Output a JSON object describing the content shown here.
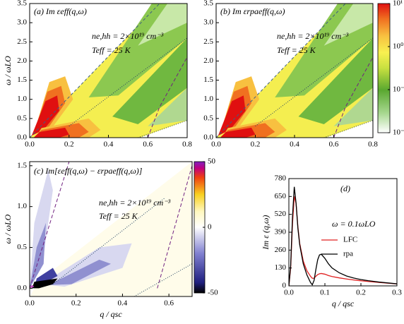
{
  "chart_data": [
    {
      "type": "contour",
      "annotations": [
        "(a) Im εeff(q,ω)",
        "ne,hh = 2×10¹⁹ cm⁻³",
        "Teff = 25 K"
      ],
      "y_label": "ω / ωLO",
      "xlim": [
        0,
        0.8
      ],
      "xticks": [
        {
          "value": 0,
          "label": "0.0"
        },
        0.2,
        0.4,
        0.6,
        0.8
      ],
      "ylim": [
        0,
        3.5
      ],
      "yticks": [
        {
          "value": 0,
          "label": "0.0"
        },
        0.5,
        {
          "value": 1,
          "label": "1.0"
        },
        1.5,
        {
          "value": 2,
          "label": "2.0"
        },
        2.5,
        {
          "value": 3,
          "label": "3.0"
        },
        3.5
      ]
    },
    {
      "type": "contour",
      "annotations": [
        "(b) Im εrpaeff(q,ω)",
        "ne,hh = 2×10¹⁹ cm⁻³",
        "Teff = 25 K"
      ],
      "xlim": [
        0,
        0.8
      ],
      "xticks": [
        {
          "value": 0,
          "label": "0.0"
        },
        0.2,
        0.4,
        0.6,
        0.8
      ],
      "ylim": [
        0,
        3.5
      ],
      "yticks": [
        {
          "value": 0,
          "label": "0.0"
        },
        0.5,
        {
          "value": 1,
          "label": "1.0"
        },
        1.5,
        {
          "value": 2,
          "label": "2.0"
        },
        2.5,
        {
          "value": 3,
          "label": "3.0"
        },
        3.5
      ],
      "colorbar": {
        "log": true,
        "lim": [
          0.01,
          10
        ],
        "ticks": [
          {
            "value": 10,
            "label": "10¹"
          },
          {
            "value": 1,
            "label": "10⁰"
          },
          {
            "value": 0.1,
            "label": "10⁻¹"
          },
          {
            "value": 0.01,
            "label": "10⁻²"
          }
        ]
      }
    },
    {
      "type": "contour",
      "annotations": [
        "(c) Im[εeff(q,ω) − εrpaeff(q,ω)]",
        "ne,hh = 2×10¹⁹ cm⁻³",
        "Teff = 25 K"
      ],
      "x_label": "q / qsc",
      "y_label": "ω / ωLO",
      "xlim": [
        0,
        0.7
      ],
      "xticks": [
        {
          "value": 0,
          "label": "0.0"
        },
        0.2,
        0.4,
        0.6
      ],
      "ylim": [
        -0.1,
        1.55
      ],
      "yticks": [
        {
          "value": 0,
          "label": "0.0"
        },
        0.5,
        {
          "value": 1,
          "label": "1.0"
        },
        1.5
      ],
      "colorbar": {
        "log": false,
        "lim": [
          -50,
          50
        ],
        "ticks": [
          50,
          0,
          -50
        ]
      }
    },
    {
      "type": "line",
      "annotations": [
        "(d)",
        "ω = 0.1ωLO"
      ],
      "x_label": "q / qsc",
      "y_label": "Im ε (q,ω)",
      "xlim": [
        0,
        0.3
      ],
      "xticks": [
        {
          "value": 0,
          "label": "0.0"
        },
        0.1,
        0.2,
        0.3
      ],
      "ylim": [
        0,
        780
      ],
      "yticks": [
        0,
        130,
        260,
        390,
        520,
        650,
        780
      ],
      "x": [
        0,
        0.005,
        0.01,
        0.015,
        0.02,
        0.025,
        0.03,
        0.04,
        0.05,
        0.06,
        0.065,
        0.07,
        0.075,
        0.08,
        0.085,
        0.09,
        0.1,
        0.11,
        0.12,
        0.14,
        0.16,
        0.18,
        0.2,
        0.22,
        0.25,
        0.3
      ],
      "series": [
        {
          "name": "LFC",
          "color": "#e02020",
          "values": [
            0,
            130,
            450,
            650,
            600,
            430,
            310,
            180,
            110,
            70,
            55,
            55,
            70,
            82,
            88,
            90,
            85,
            75,
            68,
            58,
            50,
            43,
            37,
            32,
            25,
            14
          ]
        },
        {
          "name": "rpa",
          "color": "#000000",
          "values": [
            0,
            150,
            500,
            720,
            600,
            420,
            300,
            160,
            80,
            25,
            8,
            40,
            120,
            190,
            225,
            230,
            200,
            160,
            130,
            95,
            72,
            57,
            46,
            38,
            28,
            15
          ]
        }
      ]
    }
  ]
}
